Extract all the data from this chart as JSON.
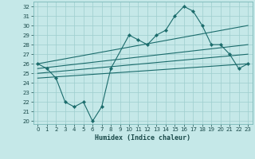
{
  "xlabel": "Humidex (Indice chaleur)",
  "bg_color": "#c5e8e8",
  "grid_color": "#9ecece",
  "line_color": "#1a6b6b",
  "xlim": [
    -0.5,
    23.5
  ],
  "ylim": [
    19.7,
    32.5
  ],
  "yticks": [
    20,
    21,
    22,
    23,
    24,
    25,
    26,
    27,
    28,
    29,
    30,
    31,
    32
  ],
  "xticks": [
    0,
    1,
    2,
    3,
    4,
    5,
    6,
    7,
    8,
    9,
    10,
    11,
    12,
    13,
    14,
    15,
    16,
    17,
    18,
    19,
    20,
    21,
    22,
    23
  ],
  "main_x": [
    0,
    1,
    2,
    3,
    4,
    5,
    6,
    7,
    8,
    10,
    11,
    12,
    13,
    14,
    15,
    16,
    17,
    18,
    19,
    20,
    21,
    22,
    23
  ],
  "main_y": [
    26,
    25.5,
    24.5,
    22,
    21.5,
    22,
    20,
    21.5,
    25.5,
    29,
    28.5,
    28,
    29,
    29.5,
    31,
    32,
    31.5,
    30,
    28,
    28,
    27,
    25.5,
    26
  ],
  "line1_x": [
    0,
    23
  ],
  "line1_y": [
    26.0,
    30.0
  ],
  "line2_x": [
    0,
    23
  ],
  "line2_y": [
    25.5,
    28.0
  ],
  "line3_x": [
    0,
    23
  ],
  "line3_y": [
    25.0,
    27.0
  ],
  "line4_x": [
    0,
    23
  ],
  "line4_y": [
    24.5,
    26.0
  ]
}
